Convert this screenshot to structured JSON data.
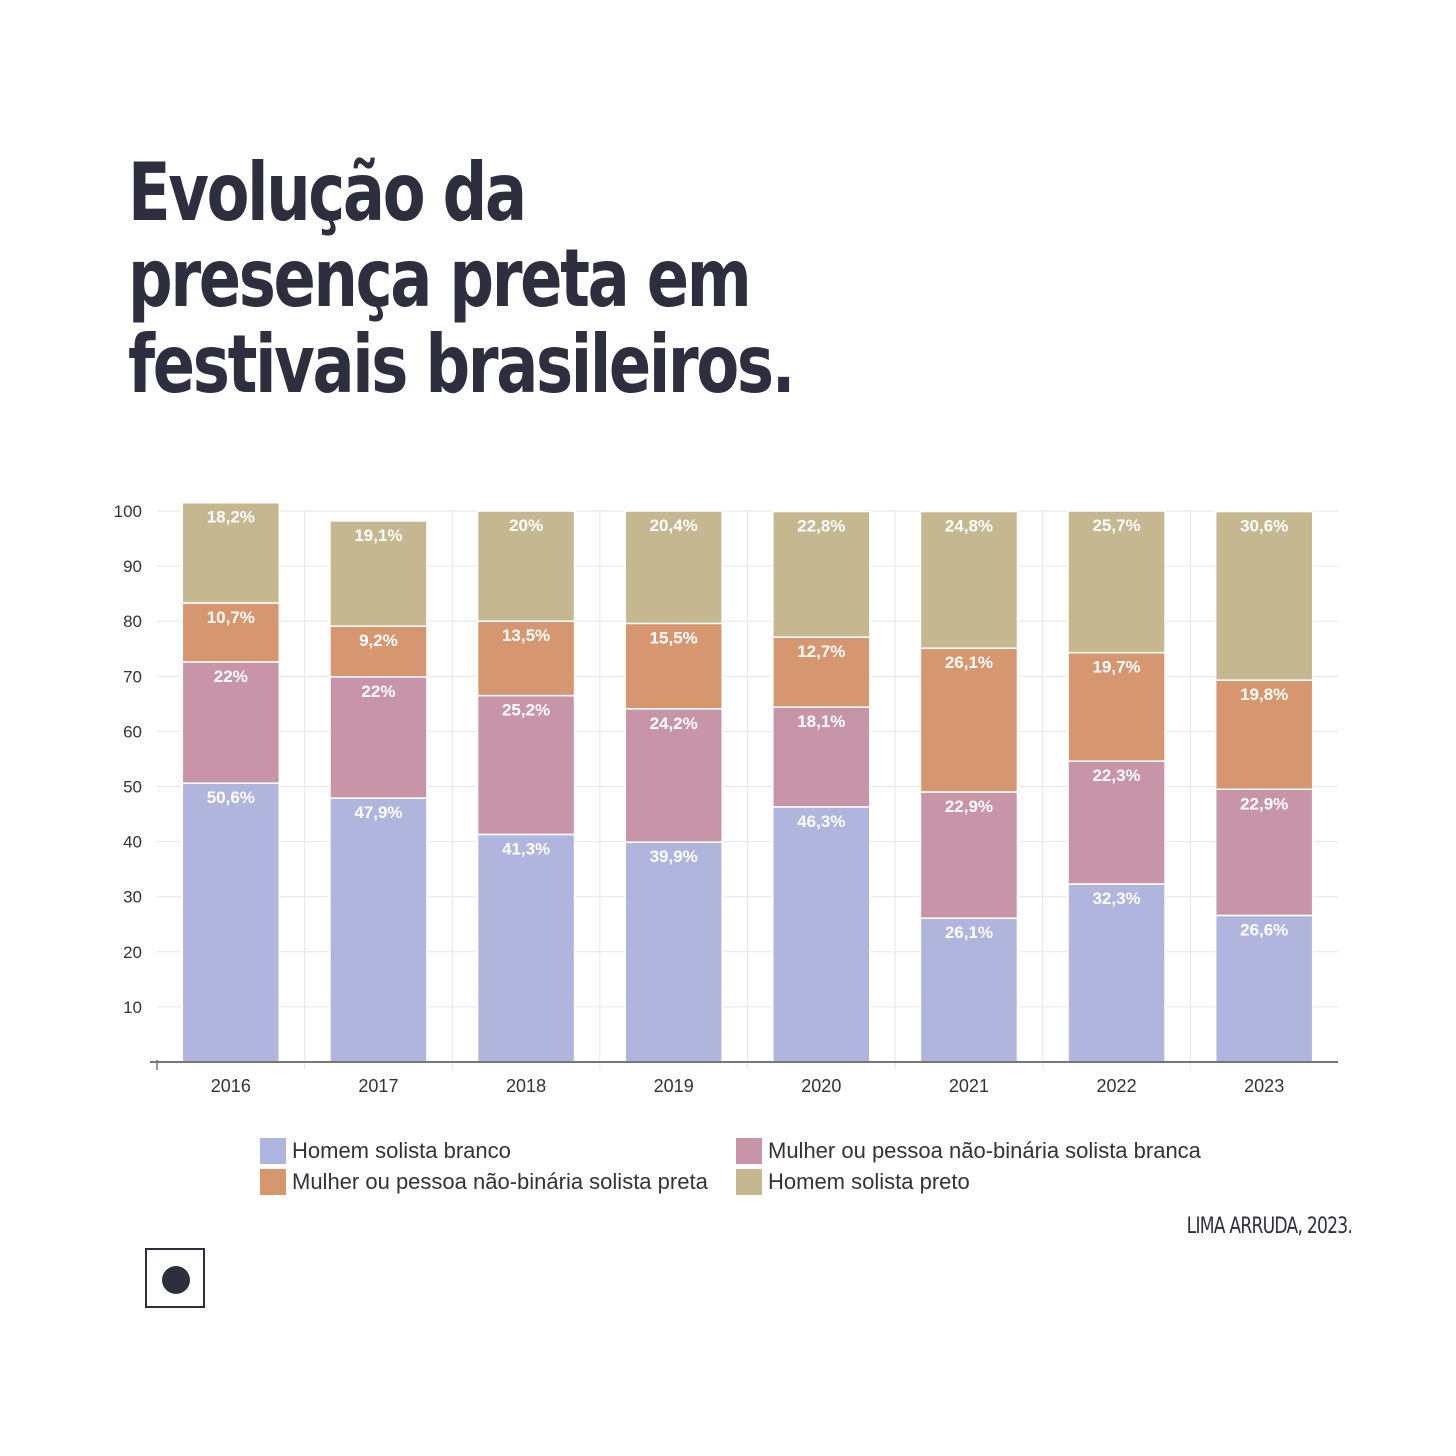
{
  "title_lines": [
    "Evolução da",
    "presença preta em",
    "festivais brasileiros."
  ],
  "source": "LIMA ARRUDA, 2023.",
  "colors": {
    "homem_branco": "#b0b5de",
    "mulher_branca": "#c795a7",
    "mulher_preta": "#d6966f",
    "homem_preto": "#c5b78f",
    "title": "#2e2f3e"
  },
  "badge_icon": "record-dot-icon",
  "chart_data": {
    "type": "bar",
    "stacked": true,
    "categories": [
      "2016",
      "2017",
      "2018",
      "2019",
      "2020",
      "2021",
      "2022",
      "2023"
    ],
    "ylim": [
      0,
      100
    ],
    "yticks": [
      10,
      20,
      30,
      40,
      50,
      60,
      70,
      80,
      90,
      100
    ],
    "grid": true,
    "legend_position": "bottom",
    "series": [
      {
        "name": "Homem solista branco",
        "color": "#b0b5de",
        "values": [
          50.6,
          47.9,
          41.3,
          39.9,
          46.3,
          26.1,
          32.3,
          26.6
        ],
        "labels": [
          "50,6%",
          "47,9%",
          "41,3%",
          "39,9%",
          "46,3%",
          "26,1%",
          "32,3%",
          "26,6%"
        ]
      },
      {
        "name": "Mulher ou pessoa não-binária solista branca",
        "color": "#c795a7",
        "values": [
          22,
          22,
          25.2,
          24.2,
          18.1,
          22.9,
          22.3,
          22.9
        ],
        "labels": [
          "22%",
          "22%",
          "25,2%",
          "24,2%",
          "18,1%",
          "22,9%",
          "22,3%",
          "22,9%"
        ]
      },
      {
        "name": "Mulher ou pessoa não-binária solista preta",
        "color": "#d6966f",
        "values": [
          10.7,
          9.2,
          13.5,
          15.5,
          12.7,
          26.1,
          19.7,
          19.8
        ],
        "labels": [
          "10,7%",
          "9,2%",
          "13,5%",
          "15,5%",
          "12,7%",
          "26,1%",
          "19,7%",
          "19,8%"
        ]
      },
      {
        "name": "Homem solista preto",
        "color": "#c5b78f",
        "values": [
          18.2,
          19.1,
          20,
          20.4,
          22.8,
          24.8,
          25.7,
          30.6
        ],
        "labels": [
          "18,2%",
          "19,1%",
          "20%",
          "20,4%",
          "22,8%",
          "24,8%",
          "25,7%",
          "30,6%"
        ]
      }
    ],
    "legend_order": [
      0,
      1,
      2,
      3
    ]
  }
}
